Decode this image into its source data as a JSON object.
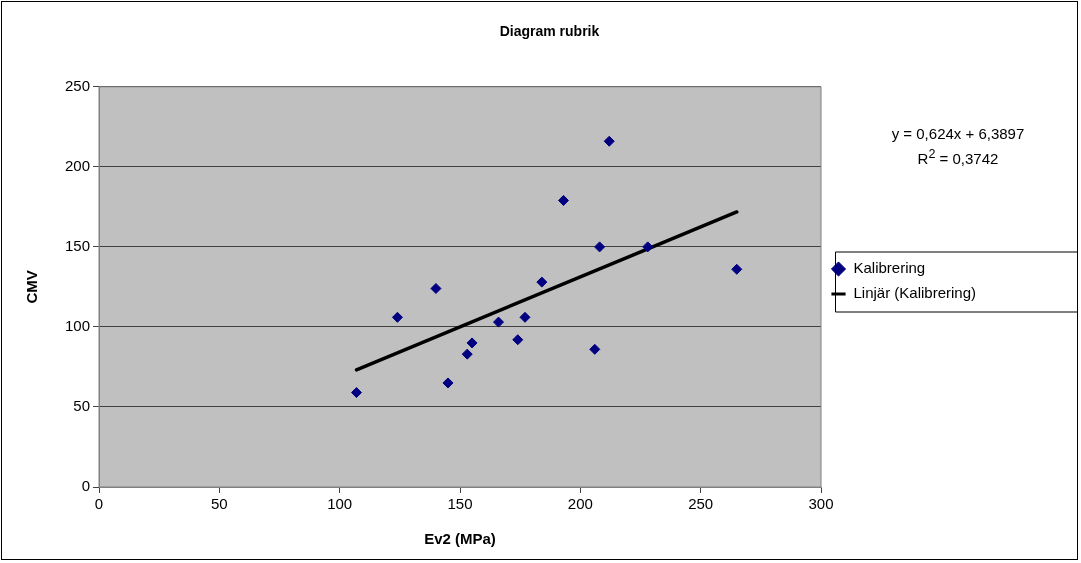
{
  "chart_data": {
    "type": "scatter",
    "title": "Diagram rubrik",
    "xlabel": "Ev2 (MPa)",
    "ylabel": "CMV",
    "xlim": [
      0,
      300
    ],
    "xticks": [
      0,
      50,
      100,
      150,
      200,
      250,
      300
    ],
    "ylim": [
      0,
      250
    ],
    "yticks": [
      0,
      50,
      100,
      150,
      200,
      250
    ],
    "grid": "y",
    "legend": "right",
    "marker": "diamond",
    "series": [
      {
        "name": "Kalibrering",
        "color": "#000080",
        "x": [
          107,
          124,
          140,
          145,
          153,
          155,
          166,
          174,
          177,
          184,
          193,
          206,
          208,
          212,
          228,
          265
        ],
        "values": [
          59,
          106,
          124,
          65,
          83,
          90,
          103,
          92,
          106,
          128,
          179,
          86,
          150,
          216,
          150,
          136
        ]
      },
      {
        "name": "Linjär (Kalibrering)",
        "type": "line",
        "color": "#000000",
        "marker": "none",
        "line_style": "solid",
        "x": [
          107,
          265
        ],
        "values": [
          73.2,
          171.8
        ]
      }
    ],
    "annotations": [
      "y = 0,624x + 6,3897",
      "R$^{2}$ = 0,3742"
    ]
  }
}
